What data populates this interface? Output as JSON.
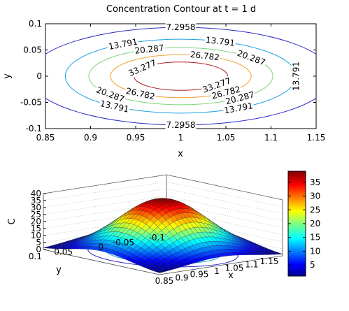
{
  "chart_data": [
    {
      "type": "contour",
      "title": "Concentration Contour at t = 1 d",
      "xlabel": "x",
      "ylabel": "y",
      "xlim": [
        0.85,
        1.15
      ],
      "ylim": [
        -0.1,
        0.1
      ],
      "x_ticks": [
        "0.85",
        "0.9",
        "0.95",
        "1",
        "1.05",
        "1.1",
        "1.15"
      ],
      "y_ticks": [
        "0.1",
        "0.05",
        "0",
        "-0.05",
        "-0.1"
      ],
      "center": [
        1.0,
        0.0
      ],
      "levels": [
        {
          "value": 7.2958,
          "label": "7.2958",
          "color": "#2b2bc4",
          "rx": 0.168,
          "ry": 0.0932
        },
        {
          "value": 13.791,
          "label": "13.791",
          "color": "#1ea0e6",
          "rx": 0.128,
          "ry": 0.0705
        },
        {
          "value": 20.287,
          "label": "20.287",
          "color": "#7fd67a",
          "rx": 0.102,
          "ry": 0.0545
        },
        {
          "value": 26.782,
          "label": "26.782",
          "color": "#f0a030",
          "rx": 0.078,
          "ry": 0.041
        },
        {
          "value": 33.277,
          "label": "33.277",
          "color": "#b02020",
          "rx": 0.052,
          "ry": 0.027
        }
      ]
    },
    {
      "type": "surface",
      "zlabel": "C",
      "xlabel": "x",
      "ylabel": "y",
      "xlim": [
        0.85,
        1.15
      ],
      "ylim": [
        -0.1,
        0.1
      ],
      "zlim": [
        0,
        40
      ],
      "x_ticks": [
        "0.85",
        "0.9",
        "0.95",
        "1",
        "1.05",
        "1.1",
        "1.15"
      ],
      "y_ticks": [
        "0.1",
        "0.05",
        "0",
        "-0.05",
        "-0.1"
      ],
      "z_ticks": [
        "0",
        "5",
        "10",
        "15",
        "20",
        "25",
        "30",
        "35",
        "40"
      ],
      "peak_value": 38.5,
      "colorbar_range": [
        1,
        39
      ],
      "colorbar_ticks": [
        "5",
        "10",
        "15",
        "20",
        "25",
        "30",
        "35"
      ],
      "colormap": "jet"
    }
  ]
}
